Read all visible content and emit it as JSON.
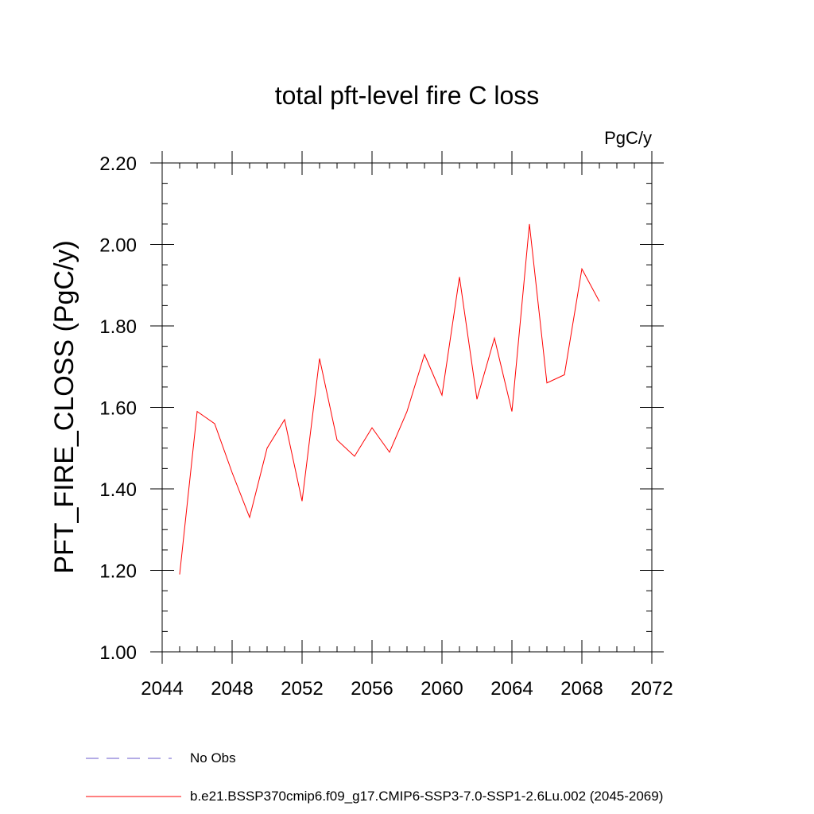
{
  "chart_data": {
    "type": "line",
    "title": "total pft-level fire C loss",
    "units_label": "PgC/y",
    "ylabel": "PFT_FIRE_CLOSS  (PgC/y)",
    "xlabel": "",
    "xlim": [
      2044,
      2072
    ],
    "ylim": [
      1.0,
      2.2
    ],
    "x_ticks": [
      2044,
      2048,
      2052,
      2056,
      2060,
      2064,
      2068,
      2072
    ],
    "y_ticks": [
      "1.00",
      "1.20",
      "1.40",
      "1.60",
      "1.80",
      "2.00",
      "2.20"
    ],
    "grid": false,
    "series": [
      {
        "name": "b.e21.BSSP370cmip6.f09_g17.CMIP6-SSP3-7.0-SSP1-2.6Lu.002 (2045-2069)",
        "color": "#ff0000",
        "style": "solid",
        "x": [
          2045,
          2046,
          2047,
          2048,
          2049,
          2050,
          2051,
          2052,
          2053,
          2054,
          2055,
          2056,
          2057,
          2058,
          2059,
          2060,
          2061,
          2062,
          2063,
          2064,
          2065,
          2066,
          2067,
          2068,
          2069
        ],
        "y": [
          1.19,
          1.59,
          1.56,
          1.44,
          1.33,
          1.5,
          1.57,
          1.37,
          1.72,
          1.52,
          1.48,
          1.55,
          1.49,
          1.59,
          1.73,
          1.63,
          1.92,
          1.62,
          1.77,
          1.59,
          2.05,
          1.66,
          1.68,
          1.94,
          1.86
        ]
      }
    ],
    "legend": [
      {
        "label": "No Obs",
        "style": "dashed",
        "color": "#6a5acd"
      },
      {
        "label": "b.e21.BSSP370cmip6.f09_g17.CMIP6-SSP3-7.0-SSP1-2.6Lu.002 (2045-2069)",
        "style": "solid",
        "color": "#ff0000"
      }
    ],
    "legend_position": "bottom-left"
  }
}
